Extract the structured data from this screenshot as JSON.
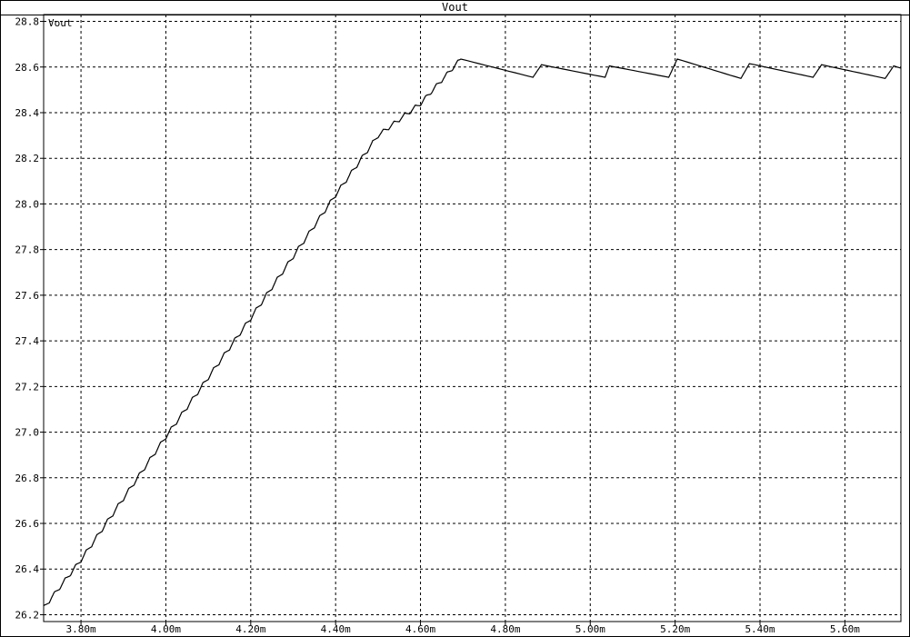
{
  "window": {
    "title": "Vout"
  },
  "chart_data": {
    "type": "line",
    "title": "Vout",
    "trace_label": "Vout",
    "xlabel": "",
    "ylabel": "",
    "x_unit": "s",
    "xlim": [
      0.003712,
      0.005732
    ],
    "ylim": [
      26.17,
      28.83
    ],
    "grid": true,
    "x_ticks": [
      0.0038,
      0.004,
      0.0042,
      0.0044,
      0.0046,
      0.0048,
      0.005,
      0.0052,
      0.0054,
      0.0056
    ],
    "x_tick_labels": [
      "3.80m",
      "4.00m",
      "4.20m",
      "4.40m",
      "4.60m",
      "4.80m",
      "5.00m",
      "5.20m",
      "5.40m",
      "5.60m"
    ],
    "y_ticks": [
      26.2,
      26.4,
      26.6,
      26.8,
      27.0,
      27.2,
      27.4,
      27.6,
      27.8,
      28.0,
      28.2,
      28.4,
      28.6,
      28.8
    ],
    "y_tick_labels": [
      "26.2",
      "26.4",
      "26.6",
      "26.8",
      "27.0",
      "27.2",
      "27.4",
      "27.6",
      "27.8",
      "28.0",
      "28.2",
      "28.4",
      "28.6",
      "28.8"
    ],
    "series": [
      {
        "name": "Vout",
        "color": "#000000",
        "x": [
          0.003712,
          0.0038,
          0.0039,
          0.004,
          0.0041,
          0.0042,
          0.0043,
          0.0044,
          0.0045,
          0.0046,
          0.004695,
          0.004865,
          0.004885,
          0.005035,
          0.005045,
          0.005185,
          0.005205,
          0.005355,
          0.005375,
          0.005525,
          0.005545,
          0.005695,
          0.005715,
          0.005732
        ],
        "y": [
          26.23,
          26.44,
          26.71,
          26.98,
          27.24,
          27.5,
          27.77,
          28.04,
          28.3,
          28.44,
          28.635,
          28.555,
          28.61,
          28.555,
          28.605,
          28.555,
          28.635,
          28.55,
          28.615,
          28.555,
          28.61,
          28.55,
          28.605,
          28.595
        ]
      }
    ]
  }
}
